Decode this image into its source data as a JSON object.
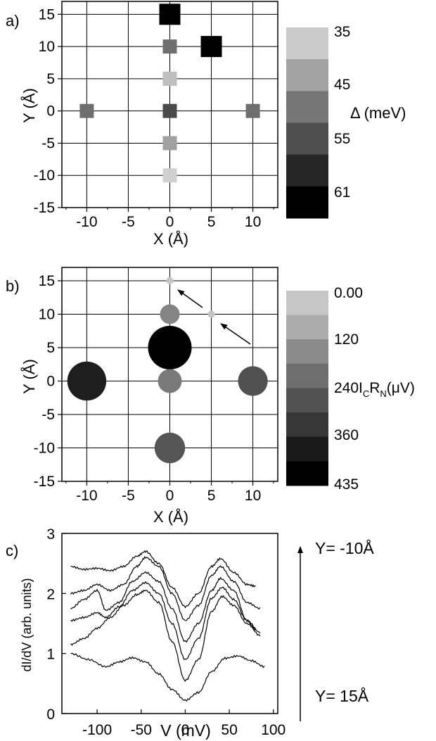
{
  "chart_data": [
    {
      "panel_label": "a)",
      "type": "scatter",
      "xlabel": "X (Å)",
      "ylabel": "Y (Å)",
      "xlim": [
        -13,
        13
      ],
      "ylim": [
        -15,
        17
      ],
      "xticks": [
        -10,
        -5,
        0,
        5,
        10
      ],
      "yticks": [
        -15,
        -10,
        -5,
        0,
        5,
        10,
        15
      ],
      "xtick_labels": [
        "-10",
        "-5",
        "0",
        "5",
        "10"
      ],
      "ytick_labels": [
        "-15",
        "-10",
        "-5",
        "0",
        "5",
        "10",
        "15"
      ],
      "grid": true,
      "marker": "square",
      "points": [
        {
          "x": 0,
          "y": 15,
          "delta": 61,
          "color": "#000000",
          "size": "large"
        },
        {
          "x": 5,
          "y": 10,
          "delta": 61,
          "color": "#000000",
          "size": "large"
        },
        {
          "x": 0,
          "y": 10,
          "delta": 48,
          "color": "#6e6e6e",
          "size": "small"
        },
        {
          "x": 0,
          "y": 5,
          "delta": 38,
          "color": "#bdbdbd",
          "size": "small"
        },
        {
          "x": 0,
          "y": 0,
          "delta": 52,
          "color": "#4a4a4a",
          "size": "small"
        },
        {
          "x": -10,
          "y": 0,
          "delta": 48,
          "color": "#6e6e6e",
          "size": "small"
        },
        {
          "x": 10,
          "y": 0,
          "delta": 48,
          "color": "#6e6e6e",
          "size": "small"
        },
        {
          "x": 0,
          "y": -5,
          "delta": 40,
          "color": "#a0a0a0",
          "size": "small"
        },
        {
          "x": 0,
          "y": -10,
          "delta": 36,
          "color": "#cfcfcf",
          "size": "small"
        }
      ],
      "colorbar": {
        "label": "Δ (meV)",
        "colors": [
          "#cbcbcb",
          "#a2a2a2",
          "#767676",
          "#4e4e4e",
          "#262626",
          "#000000"
        ],
        "tick_labels": [
          "35",
          "45",
          "55",
          "61"
        ]
      }
    },
    {
      "panel_label": "b)",
      "type": "scatter",
      "xlabel": "X (Å)",
      "ylabel": "Y (Å)",
      "xlim": [
        -13,
        13
      ],
      "ylim": [
        -15,
        17
      ],
      "xticks": [
        -10,
        -5,
        0,
        5,
        10
      ],
      "yticks": [
        -15,
        -10,
        -5,
        0,
        5,
        10,
        15
      ],
      "xtick_labels": [
        "-10",
        "-5",
        "0",
        "5",
        "10"
      ],
      "ytick_labels": [
        "-15",
        "-10",
        "-5",
        "0",
        "5",
        "10",
        "15"
      ],
      "grid": true,
      "marker": "circle",
      "points": [
        {
          "x": 0,
          "y": 15,
          "icrn": 0,
          "color": "#c4c4c4"
        },
        {
          "x": 5,
          "y": 10,
          "icrn": 0,
          "color": "#c4c4c4"
        },
        {
          "x": 0,
          "y": 10,
          "icrn": 150,
          "color": "#848484"
        },
        {
          "x": 0,
          "y": 5,
          "icrn": 435,
          "color": "#000000"
        },
        {
          "x": 0,
          "y": 0,
          "icrn": 200,
          "color": "#7a7a7a"
        },
        {
          "x": -10,
          "y": 0,
          "icrn": 380,
          "color": "#1e1e1e"
        },
        {
          "x": 10,
          "y": 0,
          "icrn": 270,
          "color": "#505050"
        },
        {
          "x": 0,
          "y": -10,
          "icrn": 280,
          "color": "#555555"
        }
      ],
      "colorbar": {
        "label_main": "I",
        "label_sub1": "C",
        "label_mid": "R",
        "label_sub2": "N",
        "label_tail": "(μV)",
        "colors": [
          "#c6c6c6",
          "#acacac",
          "#8a8a8a",
          "#6e6e6e",
          "#525252",
          "#363636",
          "#1a1a1a",
          "#000000"
        ],
        "tick_labels": [
          "0.00",
          "120",
          "240",
          "360",
          "435"
        ]
      }
    },
    {
      "panel_label": "c)",
      "type": "line",
      "xlabel": "V (mV)",
      "ylabel": "dI/dV (arb. units)",
      "xlim": [
        -140,
        105
      ],
      "ylim": [
        0,
        3
      ],
      "xticks": [
        -100,
        -50,
        0,
        50,
        100
      ],
      "yticks": [
        0,
        1,
        2,
        3
      ],
      "xtick_labels": [
        "-100",
        "-50",
        "0",
        "50",
        "100"
      ],
      "ytick_labels": [
        "0",
        "1",
        "2",
        "3"
      ],
      "grid": false,
      "annotation_top": "Y= -10Å",
      "annotation_bottom": "Y= 15Å",
      "series": [
        {
          "x": [
            -130,
            -110,
            -90,
            -75,
            -60,
            -45,
            -30,
            -15,
            0,
            15,
            30,
            45,
            60,
            75,
            90
          ],
          "y": [
            1.0,
            0.9,
            0.78,
            0.86,
            0.93,
            0.86,
            0.66,
            0.4,
            0.22,
            0.35,
            0.7,
            0.92,
            0.96,
            0.88,
            0.78
          ]
        },
        {
          "x": [
            -130,
            -115,
            -100,
            -85,
            -70,
            -55,
            -45,
            -30,
            -15,
            0,
            15,
            30,
            42,
            55,
            70,
            85
          ],
          "y": [
            1.15,
            1.25,
            1.42,
            1.6,
            1.8,
            1.98,
            2.05,
            1.85,
            1.2,
            0.55,
            0.9,
            1.7,
            1.95,
            1.8,
            1.5,
            1.3
          ]
        },
        {
          "x": [
            -130,
            -115,
            -100,
            -90,
            -75,
            -60,
            -45,
            -30,
            -15,
            0,
            15,
            30,
            42,
            55,
            70,
            85
          ],
          "y": [
            1.55,
            1.6,
            1.68,
            1.6,
            1.78,
            2.05,
            2.18,
            2.0,
            1.5,
            0.9,
            1.25,
            1.92,
            2.1,
            1.9,
            1.55,
            1.35
          ]
        },
        {
          "x": [
            -130,
            -115,
            -100,
            -90,
            -75,
            -60,
            -45,
            -30,
            -15,
            0,
            15,
            30,
            40,
            55,
            70,
            80
          ],
          "y": [
            1.75,
            1.9,
            2.05,
            1.72,
            1.85,
            2.2,
            2.35,
            2.2,
            1.75,
            1.2,
            1.5,
            2.05,
            2.25,
            2.05,
            1.55,
            1.4
          ]
        },
        {
          "x": [
            -130,
            -115,
            -100,
            -85,
            -70,
            -55,
            -45,
            -30,
            -15,
            0,
            15,
            30,
            40,
            55,
            70,
            85
          ],
          "y": [
            2.0,
            2.05,
            2.15,
            2.05,
            2.15,
            2.45,
            2.6,
            2.45,
            2.0,
            1.55,
            1.8,
            2.3,
            2.45,
            2.2,
            1.85,
            1.75
          ]
        },
        {
          "x": [
            -130,
            -115,
            -100,
            -85,
            -70,
            -55,
            -45,
            -30,
            -15,
            0,
            15,
            30,
            40,
            55,
            70,
            80
          ],
          "y": [
            2.45,
            2.4,
            2.42,
            2.38,
            2.45,
            2.62,
            2.7,
            2.5,
            2.1,
            1.78,
            2.0,
            2.45,
            2.58,
            2.35,
            2.15,
            2.12
          ]
        }
      ]
    }
  ]
}
